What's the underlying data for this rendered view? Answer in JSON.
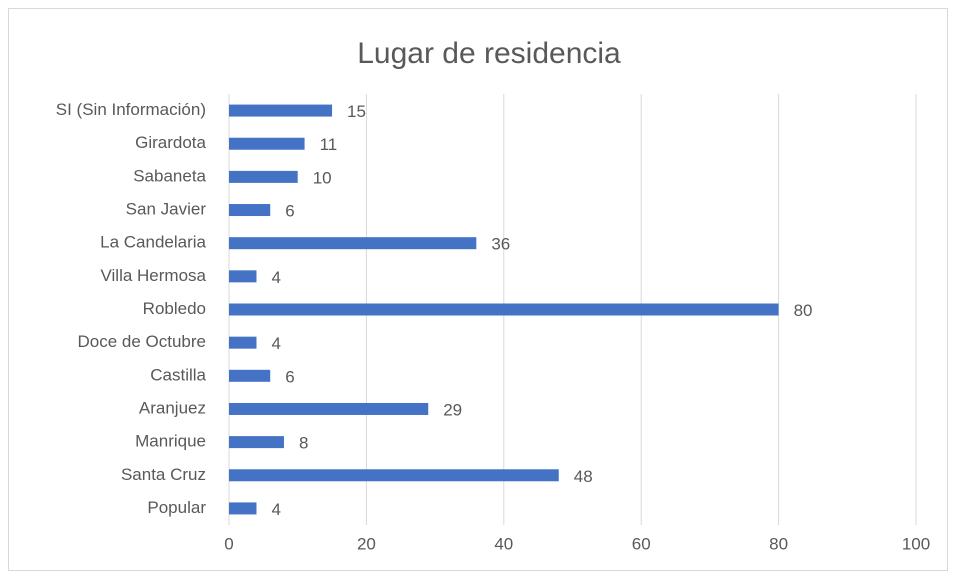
{
  "chart_data": {
    "type": "bar",
    "orientation": "horizontal",
    "title": "Lugar de residencia",
    "categories": [
      "SI (Sin Información)",
      "Girardota",
      "Sabaneta",
      "San Javier",
      "La Candelaria",
      "Villa Hermosa",
      "Robledo",
      "Doce de Octubre",
      "Castilla",
      "Aranjuez",
      "Manrique",
      "Santa Cruz",
      "Popular"
    ],
    "values": [
      15,
      11,
      10,
      6,
      36,
      4,
      80,
      4,
      6,
      29,
      8,
      48,
      4
    ],
    "color": "#4472c4",
    "xlim": [
      0,
      100
    ],
    "xticks": [
      0,
      20,
      40,
      60,
      80,
      100
    ],
    "grid": true
  }
}
